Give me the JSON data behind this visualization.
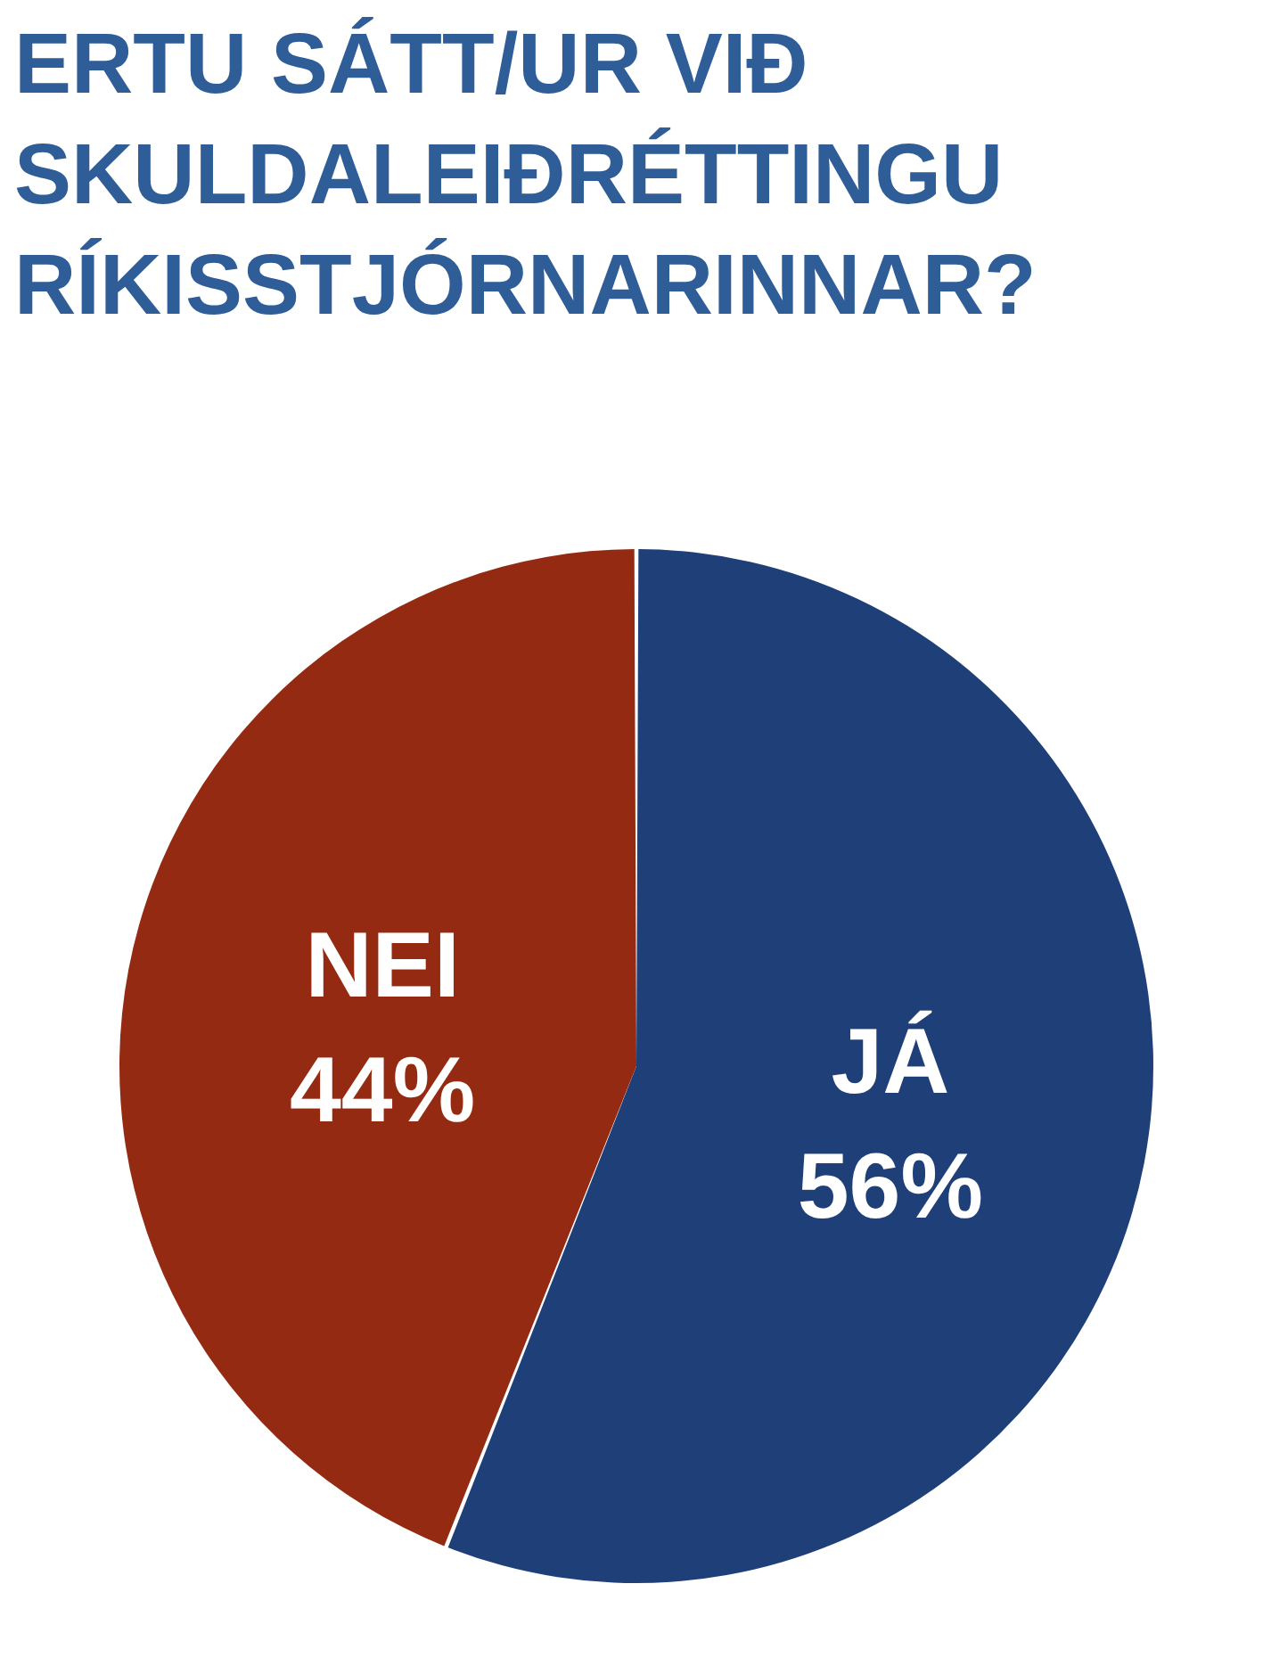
{
  "chart_data": {
    "type": "pie",
    "title": "ERTU SÁTT/UR VIÐ SKULDALEIÐRÉTTINGU RÍKISSTJÓRNARINNAR?",
    "categories": [
      "JÁ",
      "NEI"
    ],
    "values": [
      56,
      44
    ],
    "colors": [
      "#1f3f78",
      "#952a12"
    ],
    "value_labels": [
      "56%",
      "44%"
    ]
  }
}
